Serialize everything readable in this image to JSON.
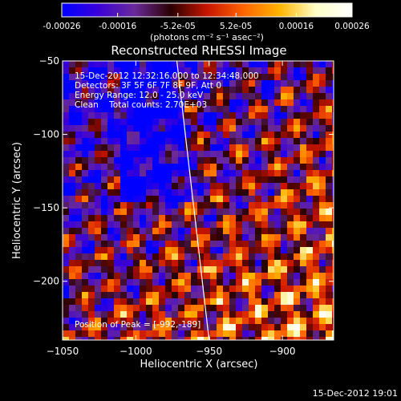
{
  "colorbar": {
    "tick_labels": [
      "-0.00026",
      "-0.00016",
      "-5.2e-05",
      "5.2e-05",
      "0.00016",
      "0.00026"
    ],
    "tick_values": [
      -0.00026,
      -0.00016,
      -5.2e-05,
      5.2e-05,
      0.00016,
      0.00026
    ],
    "range": [
      -0.00026,
      0.00026
    ],
    "units_label": "(photons cm⁻² s⁻¹ asec⁻²)",
    "colors": [
      "#0000ff",
      "#3a00d8",
      "#6a2a9a",
      "#2a0000",
      "#c81400",
      "#ff6400",
      "#ffb400",
      "#ffffc8",
      "#ffffff"
    ]
  },
  "image_title": "Reconstructed RHESSI Image",
  "annotations": {
    "time_range": "15-Dec-2012 12:32:16.000 to 12:34:48.000",
    "detectors": "Detectors: 3F 5F 6F 7F 8F 9F, Att 0",
    "energy_range": "Energy Range: 12.0 - 25.0 keV",
    "method_counts": "Clean    Total counts: 2.70E+03",
    "peak_position": "Position of Peak = [-992,-189]"
  },
  "axes": {
    "xlabel": "Heliocentric X (arcsec)",
    "ylabel": "Heliocentric Y (arcsec)",
    "x_range": [
      -1050,
      -865
    ],
    "y_range": [
      -240,
      -50
    ],
    "x_ticks": [
      -1050,
      -1000,
      -950,
      -900
    ],
    "x_tick_labels": [
      "−1050",
      "−1000",
      "−950",
      "−900"
    ],
    "y_ticks": [
      -200,
      -150,
      -100,
      -50
    ],
    "y_tick_labels": [
      "−200",
      "−150",
      "−100",
      "−50"
    ],
    "limb_line": [
      [
        -972,
        -50
      ],
      [
        -950,
        -240
      ]
    ]
  },
  "footer_timestamp": "15-Dec-2012 19:01"
}
